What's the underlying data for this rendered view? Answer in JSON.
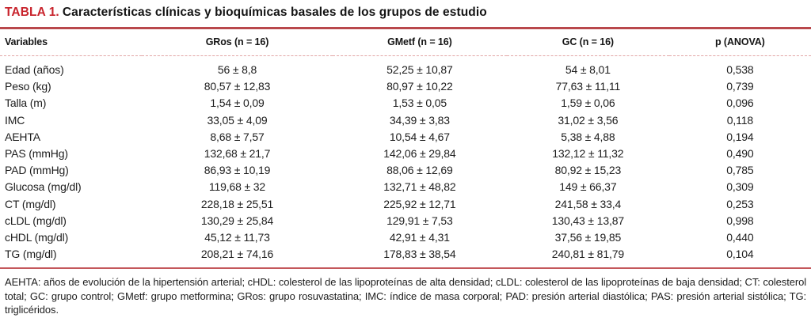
{
  "title": {
    "label": "TABLA 1.",
    "text": "Características clínicas y bioquímicas basales de los grupos de estudio"
  },
  "table": {
    "columns": [
      "Variables",
      "GRos (n = 16)",
      "GMetf (n = 16)",
      "GC (n = 16)",
      "p (ANOVA)"
    ],
    "rows": [
      [
        "Edad (años)",
        "56 ± 8,8",
        "52,25 ± 10,87",
        "54 ± 8,01",
        "0,538"
      ],
      [
        "Peso (kg)",
        "80,57 ± 12,83",
        "80,97 ± 10,22",
        "77,63 ± 11,11",
        "0,739"
      ],
      [
        "Talla (m)",
        "1,54 ± 0,09",
        "1,53 ± 0,05",
        "1,59 ± 0,06",
        "0,096"
      ],
      [
        "IMC",
        "33,05 ± 4,09",
        "34,39 ± 3,83",
        "31,02 ± 3,56",
        "0,118"
      ],
      [
        "AEHTA",
        "8,68 ± 7,57",
        "10,54 ± 4,67",
        "5,38 ± 4,88",
        "0,194"
      ],
      [
        "PAS (mmHg)",
        "132,68 ± 21,7",
        "142,06 ± 29,84",
        "132,12 ± 11,32",
        "0,490"
      ],
      [
        "PAD (mmHg)",
        "86,93 ± 10,19",
        "88,06 ± 12,69",
        "80,92 ± 15,23",
        "0,785"
      ],
      [
        "Glucosa (mg/dl)",
        "119,68 ± 32",
        "132,71 ± 48,82",
        "149 ± 66,37",
        "0,309"
      ],
      [
        "CT (mg/dl)",
        "228,18 ± 25,51",
        "225,92 ± 12,71",
        "241,58 ± 33,4",
        "0,253"
      ],
      [
        "cLDL (mg/dl)",
        "130,29 ± 25,84",
        "129,91 ± 7,53",
        "130,43 ± 13,87",
        "0,998"
      ],
      [
        "cHDL (mg/dl)",
        "45,12 ± 11,73",
        "42,91 ± 4,31",
        "37,56 ± 19,85",
        "0,440"
      ],
      [
        "TG (mg/dl)",
        "208,21 ± 74,16",
        "178,83 ± 38,54",
        "240,81 ± 81,79",
        "0,104"
      ]
    ]
  },
  "footnote": "AEHTA: años de evolución de la hipertensión arterial; cHDL: colesterol de las lipoproteínas de alta densidad; cLDL: colesterol de las lipoproteínas de baja densidad; CT: colesterol total; GC: grupo control; GMetf: grupo metformina; GRos: grupo rosuvastatina; IMC: índice de masa corporal; PAD: presión arterial diastólica; PAS: presión arterial sistólica; TG: triglicéridos.",
  "colors": {
    "accent_red": "#c8232c",
    "rule_solid_red": "#b9484c",
    "rule_dashed_pink": "#e2a6a6",
    "rule_bottom_red": "#c4575b",
    "text": "#1d1d1d"
  }
}
